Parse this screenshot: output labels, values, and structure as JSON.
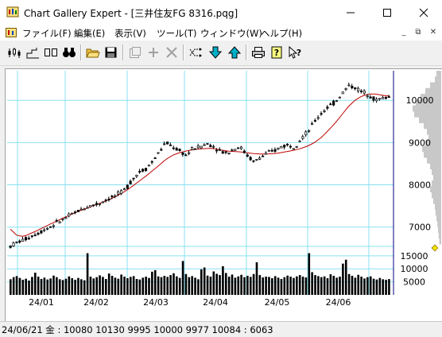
{
  "window": {
    "title": "Chart Gallery Expert - [三井住友FG 8316.pqg]",
    "minimize_glyph": "—",
    "maximize_glyph": "☐",
    "close_glyph": "✕"
  },
  "menu": {
    "items": [
      "ファイル(F)",
      "編集(E)",
      "表示(V)",
      "ツール(T)",
      "ウィンドウ(W)",
      "ヘルプ(H)"
    ],
    "mdi_minimize": "_",
    "mdi_restore": "⧉",
    "mdi_close": "✕"
  },
  "toolbar": {
    "buttons": [
      {
        "icon": "candlestick-chart-icon",
        "enabled": true
      },
      {
        "icon": "line-chart-icon",
        "enabled": true
      },
      {
        "icon": "dual-chart-icon",
        "enabled": true
      },
      {
        "icon": "binoculars-icon",
        "enabled": true
      },
      {
        "icon": "open-folder-icon",
        "enabled": true
      },
      {
        "icon": "save-icon",
        "enabled": true
      },
      {
        "icon": "properties-icon",
        "enabled": false
      },
      {
        "icon": "add-icon",
        "enabled": false
      },
      {
        "icon": "delete-icon",
        "enabled": false
      },
      {
        "icon": "shuffle-icon",
        "enabled": true
      },
      {
        "icon": "download-arrow-icon",
        "enabled": true
      },
      {
        "icon": "upload-arrow-icon",
        "enabled": true
      },
      {
        "icon": "print-icon",
        "enabled": true
      },
      {
        "icon": "help-icon",
        "enabled": true
      },
      {
        "icon": "context-help-icon",
        "enabled": true
      }
    ]
  },
  "status": {
    "text": "24/06/21 金 : 10080 10130 9995 10000  9977 10084 : 6063"
  },
  "colors": {
    "grid": "#88e0f0",
    "moving_average": "#c00000",
    "candles": "#000000",
    "cursor_line": "#000080",
    "volume_profile": "#c8c8c8",
    "marker": "#f0e000"
  },
  "chart_data": [
    {
      "type": "candlestick",
      "title": "",
      "xlabel": "",
      "ylabel": "",
      "x_tick_labels": [
        "24/01",
        "24/02",
        "24/03",
        "24/04",
        "24/05",
        "24/06"
      ],
      "y_tick_labels": [
        "10000",
        "9000",
        "8000",
        "7000"
      ],
      "ylim": [
        6600,
        10700
      ],
      "grid": true,
      "series": [
        {
          "kind": "ohlc-approx",
          "values": [
            6550,
            6640,
            6700,
            6780,
            6850,
            6940,
            7020,
            7120,
            7200,
            7300,
            7380,
            7450,
            7520,
            7550,
            7640,
            7700,
            7780,
            7900,
            8120,
            8300,
            8380,
            8550,
            8780,
            9000,
            8900,
            8800,
            8700,
            8860,
            8900,
            8970,
            8920,
            8800,
            8750,
            8850,
            8900,
            8700,
            8550,
            8650,
            8750,
            8800,
            8900,
            8950,
            8900,
            9100,
            9250,
            9500,
            9700,
            9850,
            9950,
            10150,
            10350,
            10300,
            10200,
            10150,
            10000,
            10050,
            10080
          ]
        },
        {
          "kind": "moving-average",
          "values": [
            6950,
            6800,
            6780,
            6850,
            6920,
            7000,
            7080,
            7150,
            7230,
            7300,
            7370,
            7430,
            7490,
            7550,
            7610,
            7680,
            7760,
            7850,
            7960,
            8080,
            8200,
            8330,
            8460,
            8600,
            8700,
            8760,
            8800,
            8830,
            8850,
            8860,
            8860,
            8830,
            8800,
            8790,
            8780,
            8760,
            8740,
            8730,
            8730,
            8740,
            8760,
            8790,
            8820,
            8860,
            8920,
            9000,
            9120,
            9280,
            9450,
            9650,
            9850,
            10000,
            10100,
            10150,
            10150,
            10120,
            10100
          ]
        }
      ]
    },
    {
      "type": "bar",
      "title": "",
      "y_tick_labels": [
        "15000",
        "10000",
        "5000"
      ],
      "ylim": [
        0,
        18000
      ],
      "series": [
        {
          "name": "",
          "values": [
            6000,
            6800,
            7200,
            6500,
            5800,
            6200,
            5500,
            6900,
            8500,
            7000,
            6100,
            6600,
            5900,
            6300,
            7400,
            6800,
            6000,
            5700,
            6200,
            7100,
            6400,
            5800,
            6500,
            6000,
            5600,
            16000,
            7000,
            6300,
            6800,
            7500,
            6900,
            6100,
            8200,
            7300,
            6600,
            6200,
            7800,
            7000,
            6400,
            6900,
            7200,
            6100,
            5900,
            6600,
            7000,
            6500,
            8900,
            9500,
            7100,
            6800,
            7300,
            6900,
            7600,
            8300,
            7100,
            6500,
            13000,
            8000,
            6800,
            7200,
            6600,
            6000,
            9800,
            10500,
            7400,
            7000,
            9000,
            8100,
            7600,
            11000,
            8400,
            7000,
            7800,
            6600,
            7100,
            7700,
            6800,
            7300,
            6900,
            8000,
            12500,
            7600,
            6700,
            7000,
            6900,
            6400,
            7200,
            6600,
            6100,
            6800,
            7400,
            7000,
            6500,
            7100,
            7600,
            7000,
            6700,
            16000,
            8700,
            7600,
            7200,
            6800,
            7100,
            6400,
            7900,
            7300,
            6600,
            7000,
            12000,
            13500,
            8000,
            7300,
            6600,
            7700,
            7000,
            6300,
            6800,
            7100,
            6200,
            5900,
            6500,
            6000,
            5800,
            6063
          ]
        }
      ]
    }
  ]
}
